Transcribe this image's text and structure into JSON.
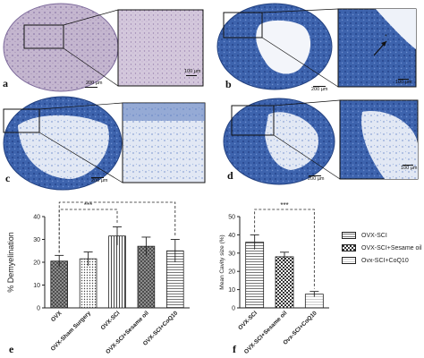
{
  "panels": {
    "a": {
      "label": "a",
      "scale_main": "200 µm",
      "scale_inset": "100 µm"
    },
    "b": {
      "label": "b",
      "scale_main": "200 µm",
      "scale_inset": "100 µm"
    },
    "c": {
      "label": "c",
      "scale_main": "200 µm"
    },
    "d": {
      "label": "d",
      "scale_main": "200 µm",
      "scale_inset": "100 µm"
    }
  },
  "colors": {
    "stain_blue": "#3358a3",
    "stain_pale": "#c7d3ea",
    "tissue_pink": "#b8a8c8",
    "bar_gray": "#8a8a8a"
  },
  "chart_data": [
    {
      "panel_label": "e",
      "type": "bar",
      "categories": [
        "OVX",
        "OVX-Sham Surgery",
        "OVX-SCI",
        "OVX-SCI+Sesame oil",
        "OVX-SCI+CoQ10"
      ],
      "values": [
        20.5,
        21.5,
        31.5,
        27,
        25
      ],
      "errors": [
        2.5,
        3,
        4,
        4,
        5
      ],
      "patterns": [
        "crosshatch",
        "dots",
        "vertical",
        "crosshatch",
        "horizontal"
      ],
      "ylabel": "% Demyelination",
      "ylim": [
        0,
        40
      ],
      "yticks": [
        0,
        10,
        20,
        30,
        40
      ],
      "significance": [
        {
          "from": 0,
          "to": 2,
          "label": "***"
        },
        {
          "from": 0,
          "to": 4,
          "label": "**"
        }
      ]
    },
    {
      "panel_label": "f",
      "type": "bar",
      "categories": [
        "OVX-SCI",
        "OVX-SCI+Sesame oil",
        "Ovx-SCI+CoQ10"
      ],
      "values": [
        36,
        28,
        7.5
      ],
      "errors": [
        4,
        2.5,
        1.5
      ],
      "patterns": [
        "horizontal",
        "checker",
        "lightlines"
      ],
      "ylabel": "Mean Cavity size (%)",
      "ylim": [
        0,
        50
      ],
      "yticks": [
        0,
        10,
        20,
        30,
        40,
        50
      ],
      "significance": [
        {
          "from": 0,
          "to": 2,
          "label": "***"
        }
      ],
      "legend": [
        "OVX-SCI",
        "OVX-SCI+Sesame oil",
        "Ovx-SCI+CoQ10"
      ]
    }
  ]
}
